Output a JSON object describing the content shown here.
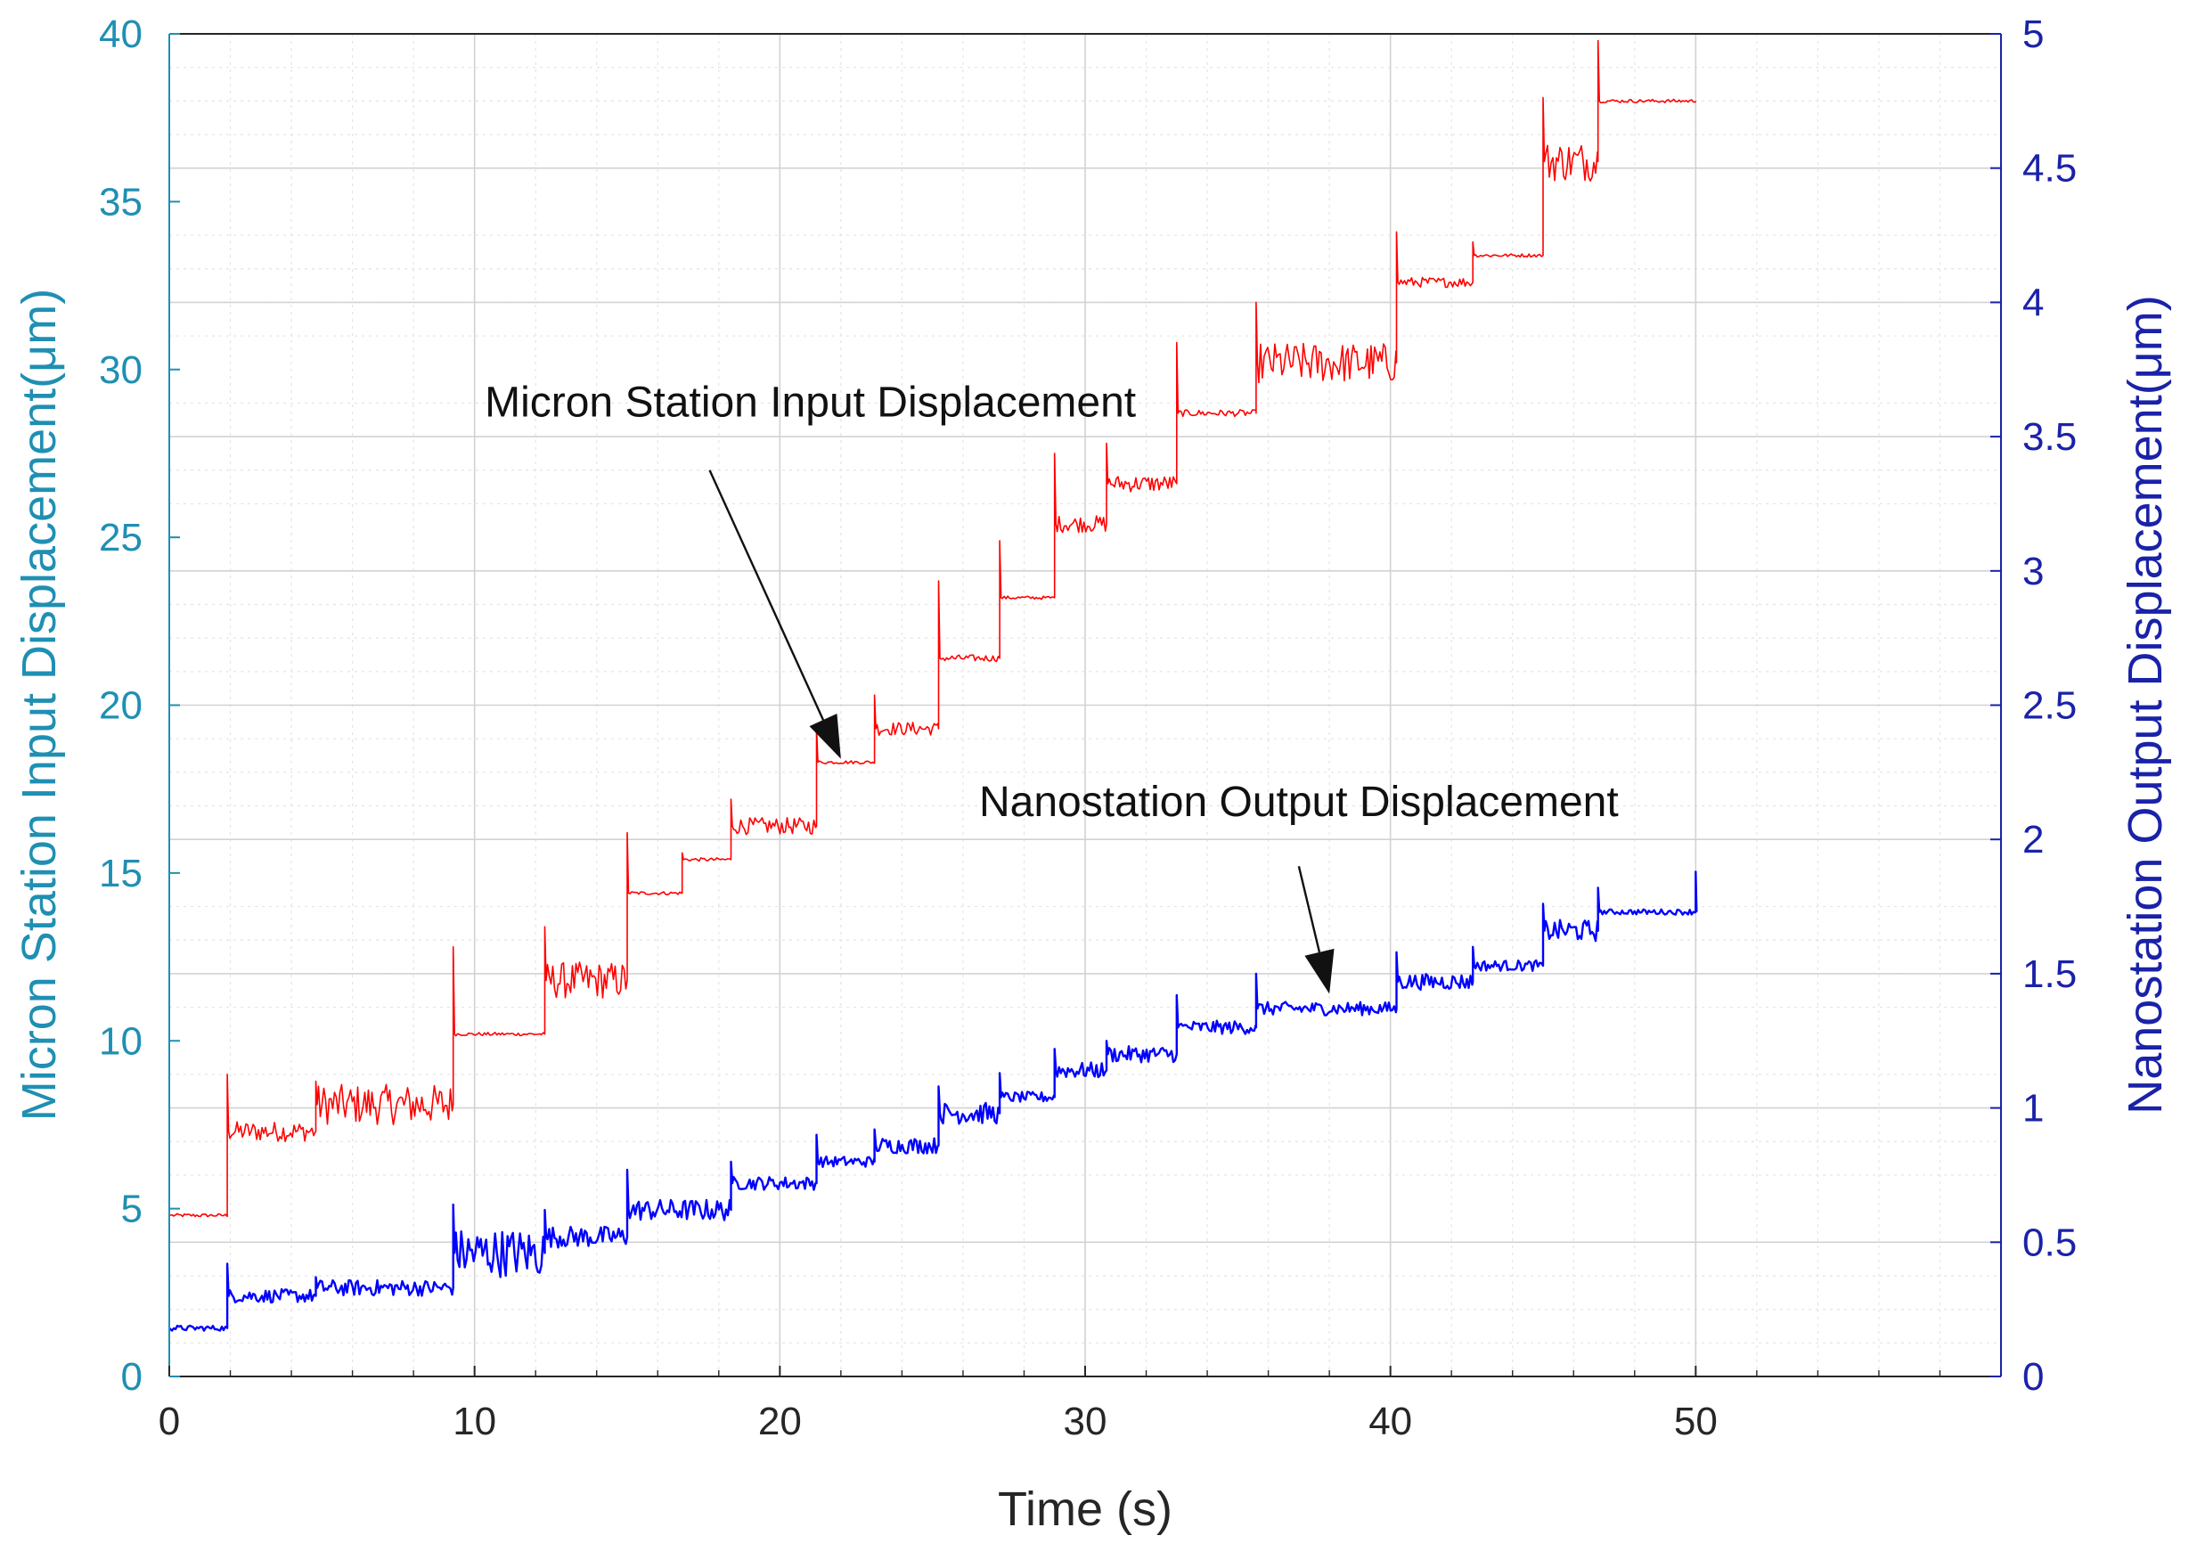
{
  "chart_data": {
    "type": "line",
    "title": "",
    "xlabel": "Time (s)",
    "ylabel_left": "Micron Station Input Displacement(μm)",
    "ylabel_right": "Nanostation Output Displacement(μm)",
    "xlim": [
      0,
      60
    ],
    "ylim_left": [
      0,
      40
    ],
    "ylim_right": [
      0,
      5
    ],
    "x_ticks": [
      "0",
      "10",
      "20",
      "30",
      "40",
      "50"
    ],
    "y_ticks_left": [
      "0",
      "5",
      "10",
      "15",
      "20",
      "25",
      "30",
      "35",
      "40"
    ],
    "y_ticks_right": [
      "0",
      "0.5",
      "1",
      "1.5",
      "2",
      "2.5",
      "3",
      "3.5",
      "4",
      "4.5",
      "5"
    ],
    "grid": true,
    "colors": {
      "input": "#ff0000",
      "output": "#0000ff",
      "left_axis": "#1f8fb3",
      "right_axis": "#1a22a8"
    },
    "series": [
      {
        "name": "Micron Station Input Displacement",
        "axis": "left",
        "color": "#ff0000",
        "steps": [
          {
            "t0": 0.0,
            "t1": 1.9,
            "y": 4.8,
            "noise": 0.05,
            "spike": 0
          },
          {
            "t0": 1.9,
            "t1": 4.8,
            "y": 7.3,
            "noise": 0.3,
            "spike": 9.0
          },
          {
            "t0": 4.8,
            "t1": 9.3,
            "y": 8.1,
            "noise": 0.6,
            "spike": 8.8
          },
          {
            "t0": 9.3,
            "t1": 12.3,
            "y": 10.2,
            "noise": 0.05,
            "spike": 12.8
          },
          {
            "t0": 12.3,
            "t1": 15.0,
            "y": 11.8,
            "noise": 0.55,
            "spike": 13.4
          },
          {
            "t0": 15.0,
            "t1": 16.8,
            "y": 14.4,
            "noise": 0.05,
            "spike": 16.2
          },
          {
            "t0": 16.8,
            "t1": 18.4,
            "y": 15.4,
            "noise": 0.05,
            "spike": 15.6
          },
          {
            "t0": 18.4,
            "t1": 21.2,
            "y": 16.4,
            "noise": 0.25,
            "spike": 17.2
          },
          {
            "t0": 21.2,
            "t1": 23.1,
            "y": 18.3,
            "noise": 0.05,
            "spike": 19.4
          },
          {
            "t0": 23.1,
            "t1": 25.2,
            "y": 19.3,
            "noise": 0.2,
            "spike": 20.3
          },
          {
            "t0": 25.2,
            "t1": 27.2,
            "y": 21.4,
            "noise": 0.1,
            "spike": 23.7
          },
          {
            "t0": 27.2,
            "t1": 29.0,
            "y": 23.2,
            "noise": 0.05,
            "spike": 24.9
          },
          {
            "t0": 29.0,
            "t1": 30.7,
            "y": 25.4,
            "noise": 0.25,
            "spike": 27.5
          },
          {
            "t0": 30.7,
            "t1": 33.0,
            "y": 26.6,
            "noise": 0.25,
            "spike": 27.8
          },
          {
            "t0": 33.0,
            "t1": 35.6,
            "y": 28.7,
            "noise": 0.1,
            "spike": 30.8
          },
          {
            "t0": 35.6,
            "t1": 40.2,
            "y": 30.2,
            "noise": 0.6,
            "spike": 32.0
          },
          {
            "t0": 40.2,
            "t1": 42.7,
            "y": 32.6,
            "noise": 0.15,
            "spike": 34.1
          },
          {
            "t0": 42.7,
            "t1": 45.0,
            "y": 33.4,
            "noise": 0.05,
            "spike": 33.8
          },
          {
            "t0": 45.0,
            "t1": 46.8,
            "y": 36.2,
            "noise": 0.6,
            "spike": 38.1
          },
          {
            "t0": 46.8,
            "t1": 50.0,
            "y": 38.0,
            "noise": 0.05,
            "spike": 39.8
          }
        ]
      },
      {
        "name": "Nanostation Output Displacement",
        "axis": "right",
        "color": "#0000ff",
        "steps": [
          {
            "t0": 0.0,
            "t1": 1.9,
            "y": 0.18,
            "noise": 0.01,
            "spike": 0
          },
          {
            "t0": 1.9,
            "t1": 4.8,
            "y": 0.3,
            "noise": 0.025,
            "spike": 0.42
          },
          {
            "t0": 4.8,
            "t1": 9.3,
            "y": 0.33,
            "noise": 0.03,
            "spike": 0.37
          },
          {
            "t0": 9.3,
            "t1": 12.3,
            "y": 0.46,
            "noise": 0.09,
            "spike": 0.64
          },
          {
            "t0": 12.3,
            "t1": 15.0,
            "y": 0.52,
            "noise": 0.04,
            "spike": 0.62
          },
          {
            "t0": 15.0,
            "t1": 18.4,
            "y": 0.62,
            "noise": 0.04,
            "spike": 0.77
          },
          {
            "t0": 18.4,
            "t1": 21.2,
            "y": 0.72,
            "noise": 0.025,
            "spike": 0.8
          },
          {
            "t0": 21.2,
            "t1": 23.1,
            "y": 0.8,
            "noise": 0.02,
            "spike": 0.9
          },
          {
            "t0": 23.1,
            "t1": 25.2,
            "y": 0.86,
            "noise": 0.03,
            "spike": 0.92
          },
          {
            "t0": 25.2,
            "t1": 27.2,
            "y": 0.98,
            "noise": 0.04,
            "spike": 1.08
          },
          {
            "t0": 27.2,
            "t1": 29.0,
            "y": 1.04,
            "noise": 0.02,
            "spike": 1.13
          },
          {
            "t0": 29.0,
            "t1": 30.7,
            "y": 1.14,
            "noise": 0.03,
            "spike": 1.22
          },
          {
            "t0": 30.7,
            "t1": 33.0,
            "y": 1.2,
            "noise": 0.03,
            "spike": 1.25
          },
          {
            "t0": 33.0,
            "t1": 35.6,
            "y": 1.3,
            "noise": 0.025,
            "spike": 1.42
          },
          {
            "t0": 35.6,
            "t1": 40.2,
            "y": 1.37,
            "noise": 0.025,
            "spike": 1.5
          },
          {
            "t0": 40.2,
            "t1": 42.7,
            "y": 1.47,
            "noise": 0.03,
            "spike": 1.58
          },
          {
            "t0": 42.7,
            "t1": 45.0,
            "y": 1.53,
            "noise": 0.02,
            "spike": 1.6
          },
          {
            "t0": 45.0,
            "t1": 46.8,
            "y": 1.66,
            "noise": 0.04,
            "spike": 1.76
          },
          {
            "t0": 46.8,
            "t1": 50.0,
            "y": 1.73,
            "noise": 0.01,
            "spike": 1.82
          }
        ]
      }
    ],
    "annotations": [
      {
        "text": "Micron Station Input Displacement",
        "text_x": 21.0,
        "text_y_left": 28.6,
        "arrow_from_x": 17.7,
        "arrow_from_y_left": 27.0,
        "arrow_to_x": 22.0,
        "arrow_to_y_left": 18.4
      },
      {
        "text": "Nanostation Output Displacement",
        "text_x": 37.0,
        "text_y_left": 16.7,
        "arrow_from_x": 37.0,
        "arrow_from_y_left": 15.2,
        "arrow_to_x": 38.0,
        "arrow_to_y_left": 11.4
      }
    ]
  }
}
